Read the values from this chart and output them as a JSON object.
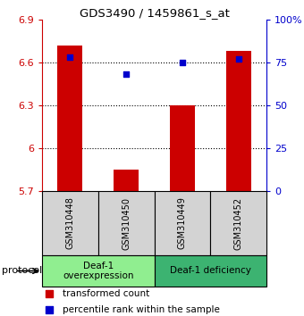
{
  "title": "GDS3490 / 1459861_s_at",
  "samples": [
    "GSM310448",
    "GSM310450",
    "GSM310449",
    "GSM310452"
  ],
  "bar_values": [
    6.72,
    5.85,
    6.3,
    6.68
  ],
  "percentile_values": [
    78,
    68,
    75,
    77
  ],
  "ylim_left": [
    5.7,
    6.9
  ],
  "ylim_right": [
    0,
    100
  ],
  "yticks_left": [
    5.7,
    6.0,
    6.3,
    6.6,
    6.9
  ],
  "ytick_labels_left": [
    "5.7",
    "6",
    "6.3",
    "6.6",
    "6.9"
  ],
  "yticks_right": [
    0,
    25,
    50,
    75,
    100
  ],
  "ytick_labels_right": [
    "0",
    "25",
    "50",
    "75",
    "100%"
  ],
  "hlines": [
    6.0,
    6.3,
    6.6
  ],
  "bar_color": "#cc0000",
  "percentile_color": "#0000cc",
  "bar_width": 0.45,
  "groups": [
    {
      "label": "Deaf-1\noverexpression",
      "samples": [
        0,
        1
      ],
      "color": "#90ee90"
    },
    {
      "label": "Deaf-1 deficiency",
      "samples": [
        2,
        3
      ],
      "color": "#3cb371"
    }
  ],
  "legend_bar_label": "transformed count",
  "legend_pct_label": "percentile rank within the sample",
  "protocol_label": "protocol",
  "sample_box_color": "#d3d3d3",
  "ylabel_left_color": "#cc0000",
  "ylabel_right_color": "#0000cc",
  "fig_width": 3.4,
  "fig_height": 3.54,
  "dpi": 100
}
